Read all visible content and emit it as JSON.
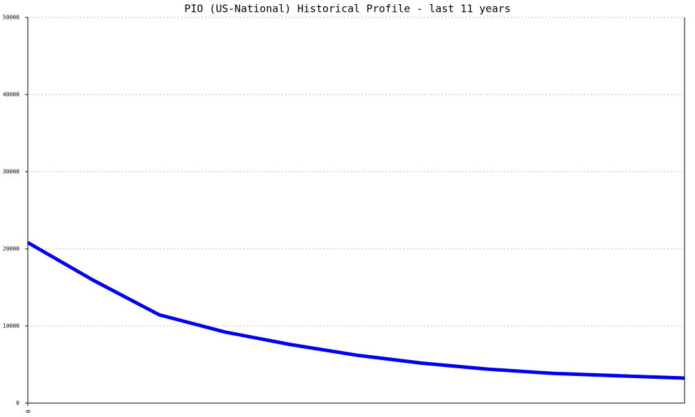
{
  "chart_data": {
    "type": "line",
    "title": "PIO (US-National) Historical Profile - last 11 years",
    "categories": [
      "0",
      null,
      null,
      null,
      null,
      null,
      null,
      null,
      null,
      null,
      null
    ],
    "series": [
      {
        "name": "PIO",
        "color": "#0000ee",
        "values": [
          20810,
          15910,
          11450,
          9220,
          7590,
          6220,
          5180,
          4400,
          3850,
          3540,
          3240
        ]
      }
    ],
    "ylim": [
      0,
      50000
    ],
    "yticks": [
      0,
      10000,
      20000,
      30000,
      40000,
      50000
    ],
    "grid": true
  }
}
